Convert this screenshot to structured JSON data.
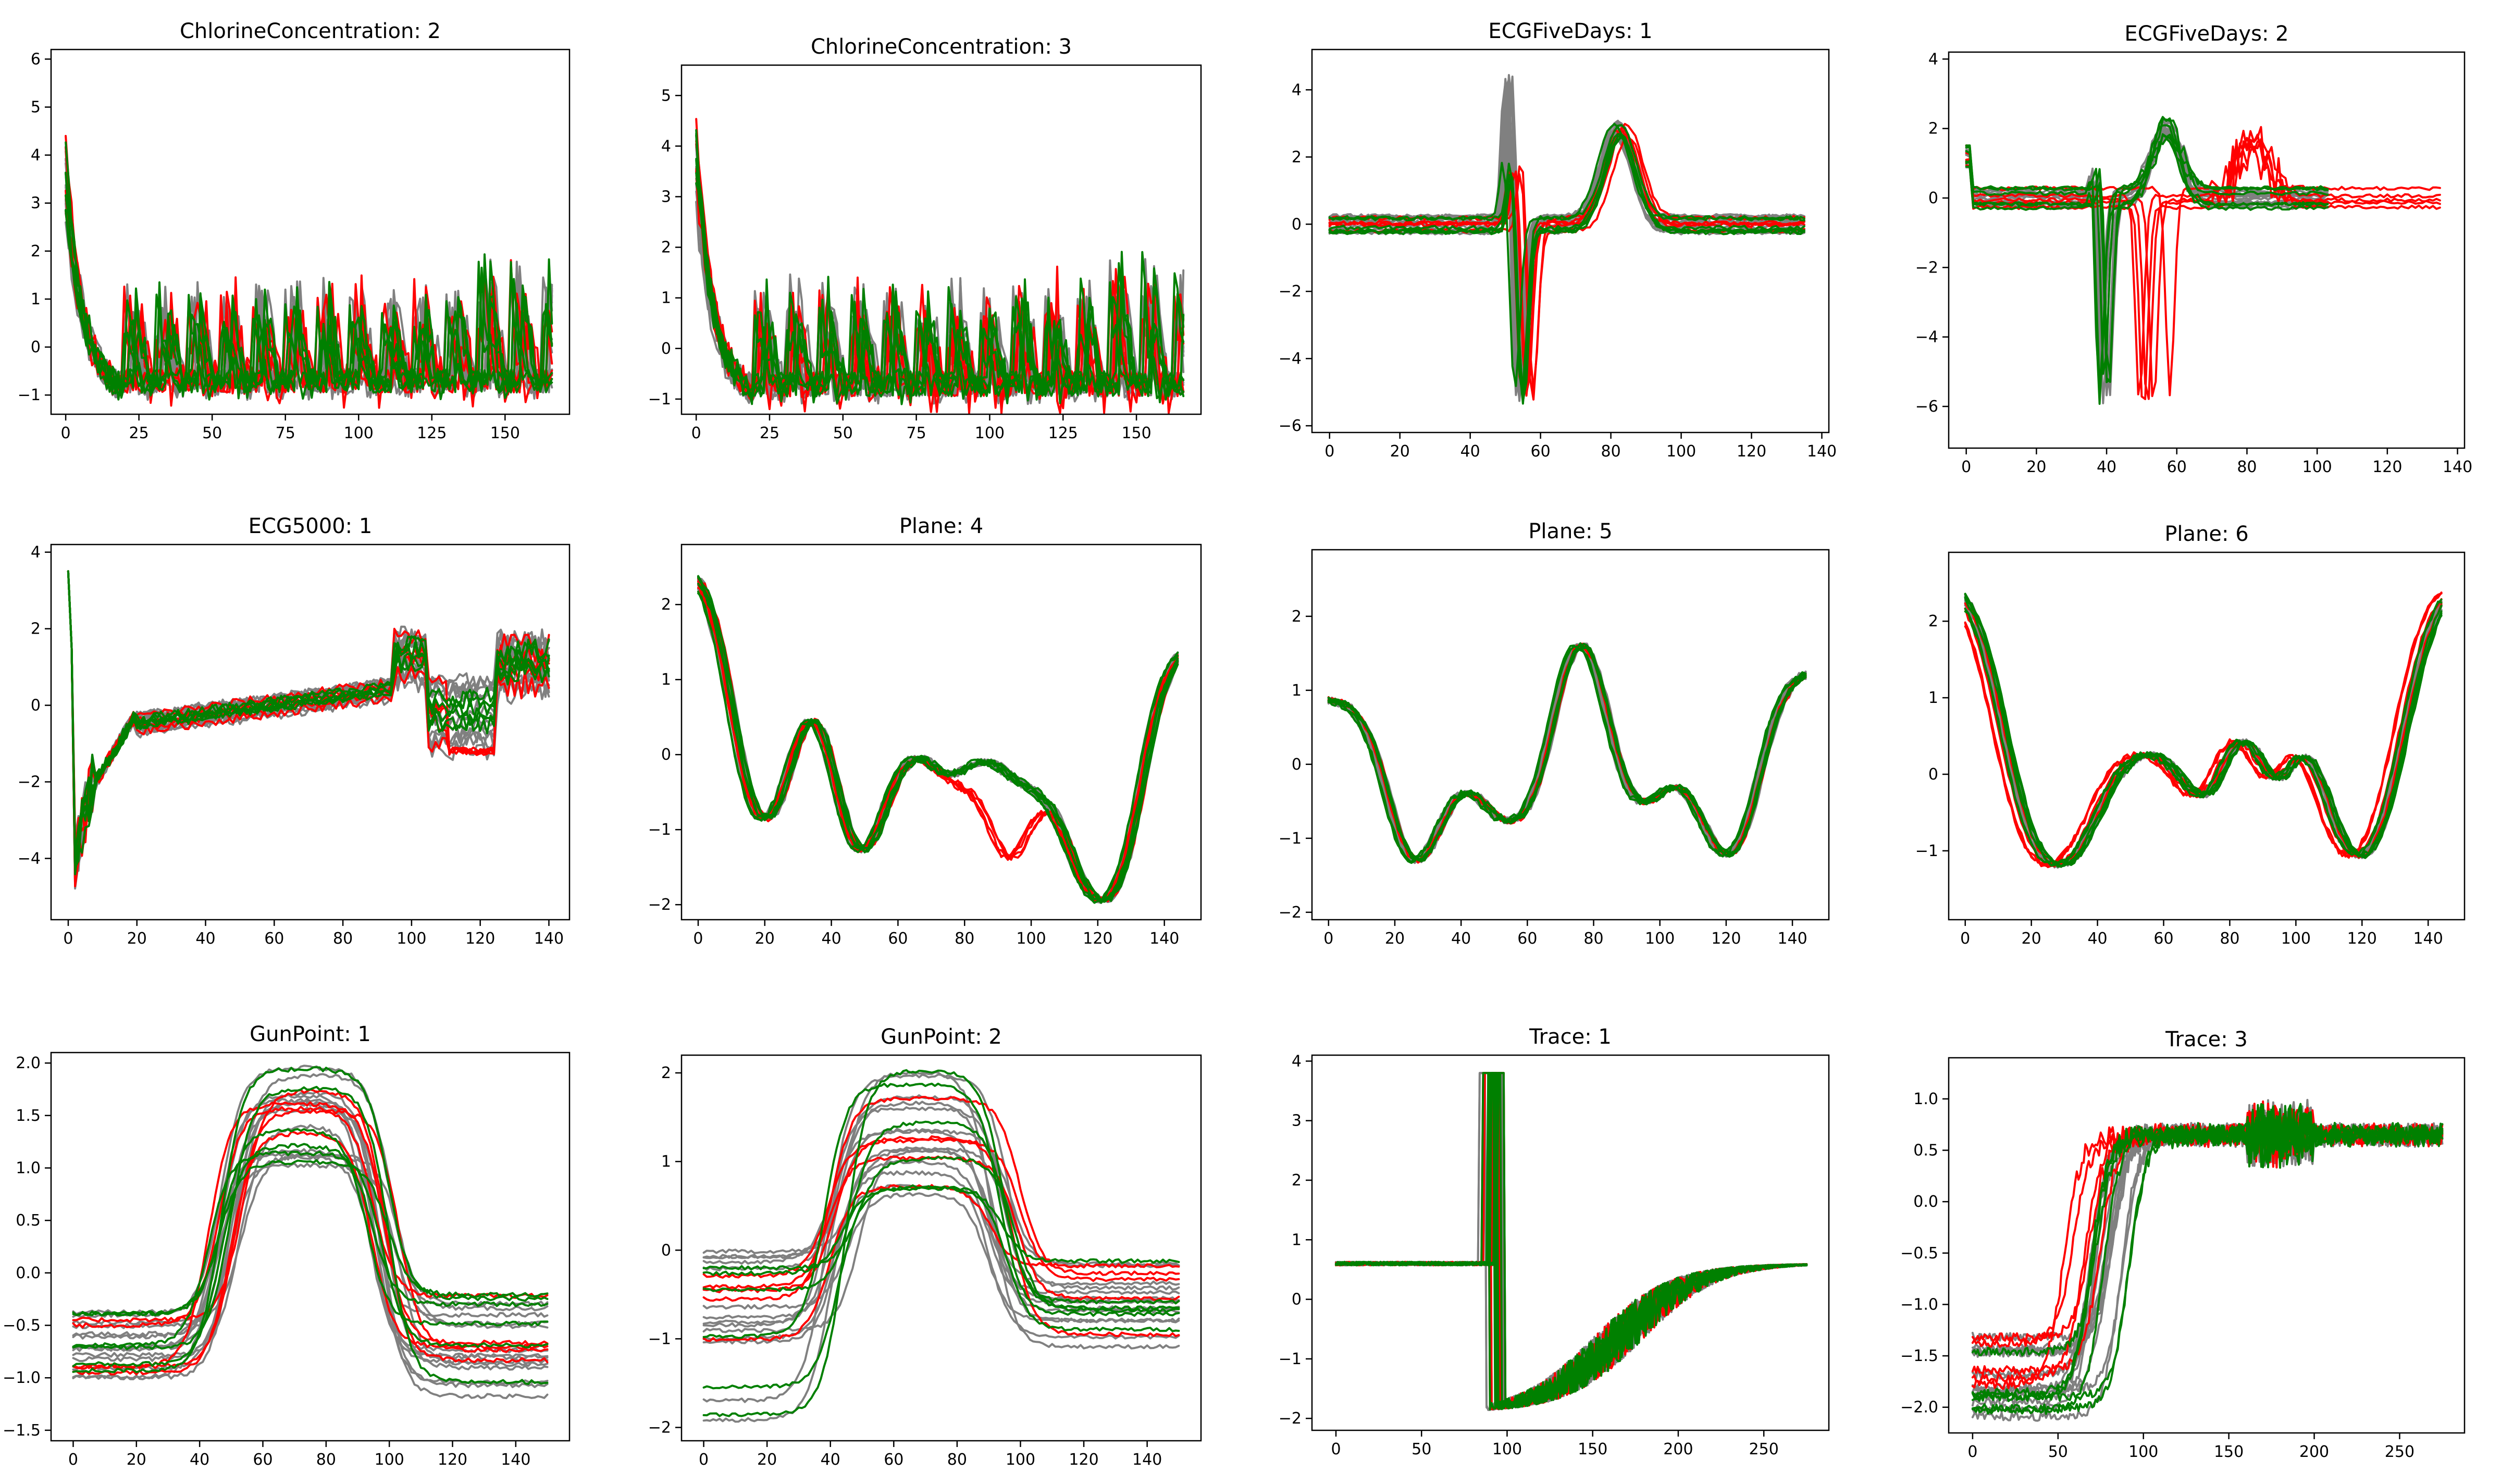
{
  "colors": {
    "background": "#808080",
    "class_a": "#ff0000",
    "class_b": "#008000"
  },
  "chart_data": [
    {
      "type": "line",
      "title": "ChlorineConcentration: 2",
      "shape": "chlorine",
      "xlim": [
        -5,
        172
      ],
      "ylim": [
        -1.4,
        6.2
      ],
      "xticks": [
        0,
        25,
        50,
        75,
        100,
        125,
        150
      ],
      "yticks": [
        -1,
        0,
        1,
        2,
        3,
        4,
        5,
        6
      ],
      "x": [
        0,
        166
      ],
      "grid": false,
      "legend": "none",
      "series": [
        {
          "color": "gray",
          "values": [
            5.0,
            -1.0
          ]
        },
        {
          "color": "red",
          "values": [
            4.6,
            -0.6
          ]
        },
        {
          "color": "green",
          "values": [
            4.2,
            -0.3
          ]
        }
      ]
    },
    {
      "type": "line",
      "title": "ChlorineConcentration: 3",
      "shape": "chlorine",
      "xlim": [
        -5,
        172
      ],
      "ylim": [
        -1.3,
        5.6
      ],
      "xticks": [
        0,
        25,
        50,
        75,
        100,
        125,
        150
      ],
      "yticks": [
        -1,
        0,
        1,
        2,
        3,
        4,
        5
      ],
      "x": [
        0,
        166
      ],
      "grid": false,
      "legend": "none",
      "series": [
        {
          "color": "gray",
          "values": [
            4.8,
            -0.8
          ]
        },
        {
          "color": "red",
          "values": [
            4.4,
            -0.7
          ]
        },
        {
          "color": "green",
          "values": [
            3.8,
            -0.6
          ]
        }
      ]
    },
    {
      "type": "line",
      "title": "ECGFiveDays: 1",
      "shape": "ecg5",
      "xlim": [
        -5,
        142
      ],
      "ylim": [
        -6.2,
        5.2
      ],
      "xticks": [
        0,
        20,
        40,
        60,
        80,
        100,
        120,
        140
      ],
      "yticks": [
        -6,
        -4,
        -2,
        0,
        2,
        4
      ],
      "x": [
        0,
        136
      ],
      "grid": false,
      "legend": "none",
      "series": [
        {
          "color": "gray",
          "values": [
            5.3,
            -5.8
          ]
        },
        {
          "color": "red",
          "values": [
            3.0,
            -5.5
          ]
        },
        {
          "color": "green",
          "values": [
            2.8,
            -5.3
          ]
        }
      ]
    },
    {
      "type": "line",
      "title": "ECGFiveDays: 2",
      "shape": "ecg5b",
      "xlim": [
        -5,
        142
      ],
      "ylim": [
        -7.2,
        4.2
      ],
      "xticks": [
        0,
        20,
        40,
        60,
        80,
        100,
        120,
        140
      ],
      "yticks": [
        -6,
        -4,
        -2,
        0,
        2,
        4
      ],
      "x": [
        0,
        136
      ],
      "grid": false,
      "legend": "none",
      "series": [
        {
          "color": "gray",
          "values": [
            3.4,
            -6.2
          ]
        },
        {
          "color": "red",
          "values": [
            3.5,
            -6.8
          ]
        },
        {
          "color": "green",
          "values": [
            2.5,
            -6.8
          ]
        }
      ]
    },
    {
      "type": "line",
      "title": "ECG5000: 1",
      "shape": "ecg5000",
      "xlim": [
        -5,
        146
      ],
      "ylim": [
        -5.6,
        4.2
      ],
      "xticks": [
        0,
        20,
        40,
        60,
        80,
        100,
        120,
        140
      ],
      "yticks": [
        -4,
        -2,
        0,
        2,
        4
      ],
      "x": [
        0,
        140
      ],
      "grid": false,
      "legend": "none",
      "series": [
        {
          "color": "gray",
          "values": [
            3.9,
            -5.3
          ]
        },
        {
          "color": "red",
          "values": [
            2.0,
            -1.5
          ]
        },
        {
          "color": "green",
          "values": [
            3.8,
            -4.2
          ]
        }
      ]
    },
    {
      "type": "line",
      "title": "Plane: 4",
      "shape": "plane4",
      "xlim": [
        -5,
        151
      ],
      "ylim": [
        -2.2,
        2.8
      ],
      "xticks": [
        0,
        20,
        40,
        60,
        80,
        100,
        120,
        140
      ],
      "yticks": [
        -2,
        -1,
        0,
        1,
        2
      ],
      "x": [
        0,
        144
      ],
      "grid": false,
      "legend": "none",
      "series": [
        {
          "color": "gray",
          "values": [
            2.6,
            -2.1
          ]
        },
        {
          "color": "red",
          "values": [
            2.6,
            -2.0
          ]
        },
        {
          "color": "green",
          "values": [
            2.6,
            -2.0
          ]
        }
      ]
    },
    {
      "type": "line",
      "title": "Plane: 5",
      "shape": "plane5",
      "xlim": [
        -5,
        151
      ],
      "ylim": [
        -2.1,
        2.9
      ],
      "xticks": [
        0,
        20,
        40,
        60,
        80,
        100,
        120,
        140
      ],
      "yticks": [
        -2,
        -1,
        0,
        1,
        2
      ],
      "x": [
        0,
        144
      ],
      "grid": false,
      "legend": "none",
      "series": [
        {
          "color": "gray",
          "values": [
            2.6,
            -1.9
          ]
        },
        {
          "color": "red",
          "values": [
            2.7,
            -1.9
          ]
        },
        {
          "color": "green",
          "values": [
            2.6,
            -1.8
          ]
        }
      ]
    },
    {
      "type": "line",
      "title": "Plane: 6",
      "shape": "plane6",
      "xlim": [
        -5,
        151
      ],
      "ylim": [
        -1.9,
        2.9
      ],
      "xticks": [
        0,
        20,
        40,
        60,
        80,
        100,
        120,
        140
      ],
      "yticks": [
        -1,
        0,
        1,
        2
      ],
      "x": [
        0,
        144
      ],
      "grid": false,
      "legend": "none",
      "series": [
        {
          "color": "gray",
          "values": [
            2.7,
            -1.6
          ]
        },
        {
          "color": "red",
          "values": [
            2.8,
            -1.5
          ]
        },
        {
          "color": "green",
          "values": [
            2.6,
            -1.5
          ]
        }
      ]
    },
    {
      "type": "line",
      "title": "GunPoint: 1",
      "shape": "gunpoint1",
      "xlim": [
        -7,
        157
      ],
      "ylim": [
        -1.6,
        2.1
      ],
      "xticks": [
        0,
        20,
        40,
        60,
        80,
        100,
        120,
        140
      ],
      "yticks": [
        -1.5,
        -1.0,
        -0.5,
        0.0,
        0.5,
        1.0,
        1.5,
        2.0
      ],
      "x": [
        0,
        150
      ],
      "grid": false,
      "legend": "none",
      "series": [
        {
          "color": "gray",
          "values": [
            2.0,
            -1.5
          ]
        },
        {
          "color": "red",
          "values": [
            1.9,
            -1.3
          ]
        },
        {
          "color": "green",
          "values": [
            1.9,
            -1.4
          ]
        }
      ]
    },
    {
      "type": "line",
      "title": "GunPoint: 2",
      "shape": "gunpoint2",
      "xlim": [
        -7,
        157
      ],
      "ylim": [
        -2.15,
        2.2
      ],
      "xticks": [
        0,
        20,
        40,
        60,
        80,
        100,
        120,
        140
      ],
      "yticks": [
        -2,
        -1,
        0,
        1,
        2
      ],
      "x": [
        0,
        150
      ],
      "grid": false,
      "legend": "none",
      "series": [
        {
          "color": "gray",
          "values": [
            2.0,
            -2.0
          ]
        },
        {
          "color": "red",
          "values": [
            2.05,
            -2.0
          ]
        },
        {
          "color": "green",
          "values": [
            2.05,
            -1.9
          ]
        }
      ]
    },
    {
      "type": "line",
      "title": "Trace: 1",
      "shape": "trace1",
      "xlim": [
        -14,
        288
      ],
      "ylim": [
        -2.2,
        4.1
      ],
      "xticks": [
        0,
        50,
        100,
        150,
        200,
        250
      ],
      "yticks": [
        -2,
        -1,
        0,
        1,
        2,
        3,
        4
      ],
      "x": [
        0,
        275
      ],
      "grid": false,
      "legend": "none",
      "series": [
        {
          "color": "gray",
          "values": [
            3.8,
            -2.0
          ]
        },
        {
          "color": "red",
          "values": [
            3.8,
            -1.9
          ]
        },
        {
          "color": "green",
          "values": [
            3.8,
            -1.9
          ]
        }
      ]
    },
    {
      "type": "line",
      "title": "Trace: 3",
      "shape": "trace3",
      "xlim": [
        -14,
        288
      ],
      "ylim": [
        -2.25,
        1.4
      ],
      "xticks": [
        0,
        50,
        100,
        150,
        200,
        250
      ],
      "yticks": [
        -2.0,
        -1.5,
        -1.0,
        -0.5,
        0.0,
        0.5,
        1.0
      ],
      "x": [
        0,
        275
      ],
      "grid": false,
      "legend": "none",
      "series": [
        {
          "color": "gray",
          "values": [
            1.3,
            -2.1
          ]
        },
        {
          "color": "red",
          "values": [
            1.3,
            -2.1
          ]
        },
        {
          "color": "green",
          "values": [
            1.2,
            -2.0
          ]
        }
      ]
    }
  ]
}
